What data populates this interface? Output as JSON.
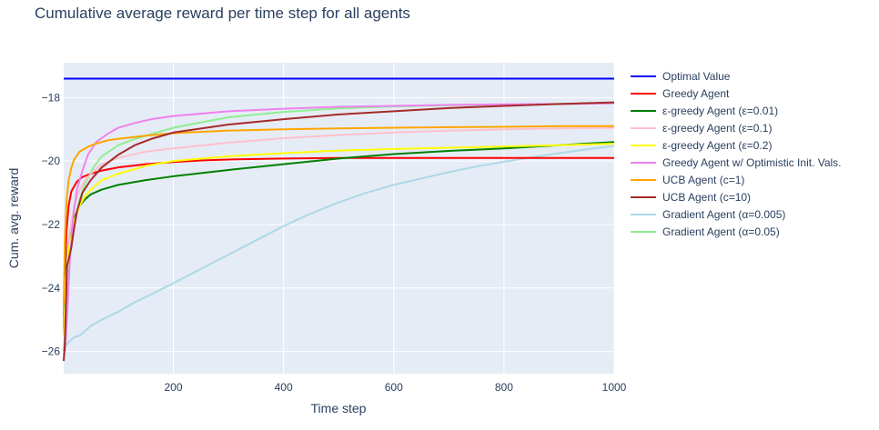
{
  "chart_data": {
    "type": "line",
    "title": "Cumulative average reward per time step for all agents",
    "xlabel": "Time step",
    "ylabel": "Cum. avg. reward",
    "xlim": [
      1,
      1000
    ],
    "ylim": [
      -26.7,
      -16.9
    ],
    "xticks": [
      200,
      400,
      600,
      800,
      1000
    ],
    "yticks": [
      -26,
      -24,
      -22,
      -20,
      -18
    ],
    "xtick_labels": [
      "200",
      "400",
      "600",
      "800",
      "1000"
    ],
    "ytick_labels": [
      "−26",
      "−24",
      "−22",
      "−20",
      "−18"
    ],
    "grid": true,
    "legend_position": "right",
    "series": [
      {
        "name": "Optimal Value",
        "color": "#0000ff",
        "points": [
          [
            1,
            -17.4
          ],
          [
            1000,
            -17.4
          ]
        ]
      },
      {
        "name": "Greedy Agent",
        "color": "#ff0000",
        "points": [
          [
            1,
            -25.5
          ],
          [
            3,
            -23.5
          ],
          [
            6,
            -22.2
          ],
          [
            10,
            -21.4
          ],
          [
            15,
            -20.95
          ],
          [
            25,
            -20.65
          ],
          [
            35,
            -20.5
          ],
          [
            50,
            -20.4
          ],
          [
            70,
            -20.3
          ],
          [
            100,
            -20.2
          ],
          [
            150,
            -20.1
          ],
          [
            200,
            -20.03
          ],
          [
            250,
            -19.98
          ],
          [
            300,
            -19.95
          ],
          [
            400,
            -19.92
          ],
          [
            500,
            -19.9
          ],
          [
            600,
            -19.9
          ],
          [
            700,
            -19.9
          ],
          [
            800,
            -19.9
          ],
          [
            900,
            -19.9
          ],
          [
            1000,
            -19.9
          ]
        ]
      },
      {
        "name": "ε-greedy Agent (ε=0.01)",
        "color": "#008000",
        "points": [
          [
            1,
            -25.3
          ],
          [
            5,
            -23.5
          ],
          [
            10,
            -22.5
          ],
          [
            20,
            -21.8
          ],
          [
            30,
            -21.4
          ],
          [
            40,
            -21.2
          ],
          [
            50,
            -21.05
          ],
          [
            70,
            -20.9
          ],
          [
            100,
            -20.75
          ],
          [
            150,
            -20.6
          ],
          [
            200,
            -20.48
          ],
          [
            300,
            -20.28
          ],
          [
            400,
            -20.1
          ],
          [
            500,
            -19.92
          ],
          [
            600,
            -19.78
          ],
          [
            700,
            -19.68
          ],
          [
            800,
            -19.6
          ],
          [
            900,
            -19.5
          ],
          [
            1000,
            -19.4
          ]
        ]
      },
      {
        "name": "ε-greedy Agent (ε=0.1)",
        "color": "#ffc0cb",
        "points": [
          [
            1,
            -25.5
          ],
          [
            5,
            -23.8
          ],
          [
            10,
            -22.5
          ],
          [
            20,
            -21.4
          ],
          [
            30,
            -20.9
          ],
          [
            40,
            -20.6
          ],
          [
            50,
            -20.4
          ],
          [
            70,
            -20.1
          ],
          [
            100,
            -19.9
          ],
          [
            150,
            -19.7
          ],
          [
            200,
            -19.6
          ],
          [
            300,
            -19.42
          ],
          [
            400,
            -19.28
          ],
          [
            500,
            -19.18
          ],
          [
            600,
            -19.1
          ],
          [
            700,
            -19.04
          ],
          [
            800,
            -19.0
          ],
          [
            900,
            -18.97
          ],
          [
            1000,
            -18.95
          ]
        ]
      },
      {
        "name": "ε-greedy Agent (ε=0.2)",
        "color": "#ffff00",
        "points": [
          [
            1,
            -25.5
          ],
          [
            5,
            -24.0
          ],
          [
            10,
            -22.8
          ],
          [
            20,
            -21.9
          ],
          [
            30,
            -21.4
          ],
          [
            40,
            -21.1
          ],
          [
            50,
            -20.9
          ],
          [
            70,
            -20.6
          ],
          [
            100,
            -20.4
          ],
          [
            150,
            -20.15
          ],
          [
            200,
            -20.0
          ],
          [
            300,
            -19.85
          ],
          [
            400,
            -19.75
          ],
          [
            500,
            -19.67
          ],
          [
            600,
            -19.62
          ],
          [
            700,
            -19.58
          ],
          [
            800,
            -19.54
          ],
          [
            900,
            -19.5
          ],
          [
            1000,
            -19.45
          ]
        ]
      },
      {
        "name": "Greedy Agent w/ Optimistic Init. Vals.",
        "color": "#ee82ee",
        "points": [
          [
            1,
            -26.1
          ],
          [
            3,
            -26.0
          ],
          [
            5,
            -25.6
          ],
          [
            8,
            -24.6
          ],
          [
            12,
            -23.2
          ],
          [
            18,
            -21.8
          ],
          [
            25,
            -20.9
          ],
          [
            35,
            -20.3
          ],
          [
            45,
            -19.8
          ],
          [
            60,
            -19.4
          ],
          [
            80,
            -19.15
          ],
          [
            100,
            -18.95
          ],
          [
            130,
            -18.8
          ],
          [
            160,
            -18.68
          ],
          [
            200,
            -18.58
          ],
          [
            300,
            -18.43
          ],
          [
            400,
            -18.35
          ],
          [
            500,
            -18.29
          ],
          [
            600,
            -18.26
          ],
          [
            700,
            -18.23
          ],
          [
            800,
            -18.21
          ],
          [
            900,
            -18.2
          ],
          [
            1000,
            -18.18
          ]
        ]
      },
      {
        "name": "UCB Agent (c=1)",
        "color": "#ffa500",
        "points": [
          [
            1,
            -24.5
          ],
          [
            3,
            -22.5
          ],
          [
            6,
            -21.3
          ],
          [
            10,
            -20.6
          ],
          [
            15,
            -20.2
          ],
          [
            20,
            -19.95
          ],
          [
            30,
            -19.7
          ],
          [
            45,
            -19.55
          ],
          [
            60,
            -19.45
          ],
          [
            80,
            -19.35
          ],
          [
            100,
            -19.3
          ],
          [
            150,
            -19.2
          ],
          [
            200,
            -19.12
          ],
          [
            300,
            -19.04
          ],
          [
            400,
            -19.0
          ],
          [
            500,
            -18.97
          ],
          [
            600,
            -18.95
          ],
          [
            700,
            -18.93
          ],
          [
            800,
            -18.92
          ],
          [
            900,
            -18.9
          ],
          [
            1000,
            -18.9
          ]
        ]
      },
      {
        "name": "UCB Agent (c=10)",
        "color": "#a52a2a",
        "points": [
          [
            1,
            -26.3
          ],
          [
            3,
            -25.8
          ],
          [
            5,
            -24.5
          ],
          [
            7,
            -23.3
          ],
          [
            10,
            -23.1
          ],
          [
            15,
            -22.7
          ],
          [
            20,
            -22.1
          ],
          [
            25,
            -21.6
          ],
          [
            35,
            -21.0
          ],
          [
            50,
            -20.6
          ],
          [
            70,
            -20.2
          ],
          [
            100,
            -19.8
          ],
          [
            130,
            -19.5
          ],
          [
            160,
            -19.3
          ],
          [
            200,
            -19.1
          ],
          [
            300,
            -18.85
          ],
          [
            400,
            -18.68
          ],
          [
            500,
            -18.53
          ],
          [
            600,
            -18.43
          ],
          [
            700,
            -18.33
          ],
          [
            800,
            -18.26
          ],
          [
            900,
            -18.2
          ],
          [
            1000,
            -18.15
          ]
        ]
      },
      {
        "name": "Gradient Agent (α=0.005)",
        "color": "#add8e6",
        "points": [
          [
            1,
            -25.9
          ],
          [
            10,
            -25.7
          ],
          [
            20,
            -25.55
          ],
          [
            30,
            -25.5
          ],
          [
            40,
            -25.35
          ],
          [
            50,
            -25.2
          ],
          [
            70,
            -25.0
          ],
          [
            100,
            -24.75
          ],
          [
            130,
            -24.45
          ],
          [
            160,
            -24.2
          ],
          [
            200,
            -23.85
          ],
          [
            250,
            -23.4
          ],
          [
            300,
            -22.95
          ],
          [
            350,
            -22.5
          ],
          [
            400,
            -22.05
          ],
          [
            450,
            -21.65
          ],
          [
            500,
            -21.3
          ],
          [
            550,
            -21.0
          ],
          [
            600,
            -20.75
          ],
          [
            650,
            -20.55
          ],
          [
            700,
            -20.35
          ],
          [
            750,
            -20.17
          ],
          [
            800,
            -20.02
          ],
          [
            850,
            -19.88
          ],
          [
            900,
            -19.75
          ],
          [
            950,
            -19.63
          ],
          [
            1000,
            -19.52
          ]
        ]
      },
      {
        "name": "Gradient Agent (α=0.05)",
        "color": "#90ee90",
        "points": [
          [
            1,
            -26.0
          ],
          [
            3,
            -25.5
          ],
          [
            6,
            -24.5
          ],
          [
            10,
            -23.3
          ],
          [
            15,
            -22.6
          ],
          [
            20,
            -22.0
          ],
          [
            30,
            -21.2
          ],
          [
            40,
            -20.7
          ],
          [
            55,
            -20.2
          ],
          [
            70,
            -19.85
          ],
          [
            100,
            -19.5
          ],
          [
            130,
            -19.3
          ],
          [
            160,
            -19.15
          ],
          [
            200,
            -18.95
          ],
          [
            250,
            -18.78
          ],
          [
            300,
            -18.62
          ],
          [
            400,
            -18.45
          ],
          [
            500,
            -18.34
          ],
          [
            600,
            -18.28
          ],
          [
            700,
            -18.24
          ],
          [
            800,
            -18.22
          ],
          [
            900,
            -18.2
          ],
          [
            1000,
            -18.18
          ]
        ]
      }
    ]
  }
}
